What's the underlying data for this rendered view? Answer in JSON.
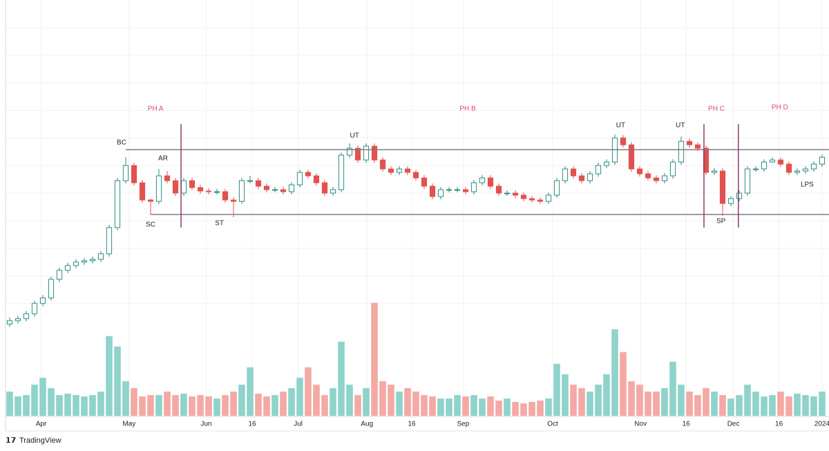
{
  "chart_data": {
    "type": "candlestick",
    "xlim": [
      -0.5,
      98.5
    ],
    "xticks": [
      {
        "value": 3.8,
        "label": "Apr"
      },
      {
        "value": 14.4,
        "label": "May"
      },
      {
        "value": 23.7,
        "label": "Jun"
      },
      {
        "value": 29.25,
        "label": "16"
      },
      {
        "value": 34.8,
        "label": "Jul"
      },
      {
        "value": 43.1,
        "label": "Aug"
      },
      {
        "value": 48.5,
        "label": "16"
      },
      {
        "value": 54.7,
        "label": "Sep"
      },
      {
        "value": 65.5,
        "label": "Oct"
      },
      {
        "value": 76.1,
        "label": "Nov"
      },
      {
        "value": 81.6,
        "label": "16"
      },
      {
        "value": 87.3,
        "label": "Dec"
      },
      {
        "value": 92.8,
        "label": "16"
      },
      {
        "value": 98,
        "label": "2024"
      }
    ],
    "ylim": [
      0,
      600
    ],
    "yticks": [
      160,
      200,
      240,
      280,
      320,
      360,
      400,
      440,
      480,
      520,
      560
    ],
    "grid": true,
    "vlim": [
      0,
      600
    ],
    "up_color": "#2b8a80",
    "down_color": "#e0524f",
    "up_volume_color": "#8fd3cb",
    "down_volume_color": "#f4a9a4",
    "candles": [
      [
        130,
        140,
        126,
        135
      ],
      [
        135,
        142,
        131,
        138
      ],
      [
        138,
        149,
        134,
        145
      ],
      [
        145,
        164,
        141,
        160
      ],
      [
        160,
        172,
        156,
        168
      ],
      [
        168,
        199,
        164,
        195
      ],
      [
        195,
        212,
        191,
        208
      ],
      [
        208,
        219,
        204,
        215
      ],
      [
        215,
        224,
        211,
        220
      ],
      [
        220,
        226,
        216,
        222
      ],
      [
        222,
        228,
        218,
        224
      ],
      [
        224,
        236,
        220,
        232
      ],
      [
        232,
        274,
        228,
        270
      ],
      [
        270,
        342,
        266,
        338
      ],
      [
        338,
        372,
        334,
        360
      ],
      [
        360,
        364,
        331,
        335
      ],
      [
        335,
        339,
        306,
        310
      ],
      [
        310,
        312,
        289,
        308
      ],
      [
        308,
        355,
        304,
        345
      ],
      [
        345,
        352,
        334,
        338
      ],
      [
        338,
        342,
        316,
        320
      ],
      [
        320,
        342,
        316,
        338
      ],
      [
        338,
        342,
        324,
        328
      ],
      [
        328,
        332,
        319,
        323
      ],
      [
        323,
        327,
        318,
        322
      ],
      [
        322,
        326,
        318,
        322
      ],
      [
        322,
        326,
        306,
        310
      ],
      [
        310,
        314,
        285,
        308
      ],
      [
        308,
        342,
        304,
        338
      ],
      [
        338,
        345,
        334,
        338
      ],
      [
        338,
        342,
        326,
        330
      ],
      [
        330,
        334,
        321,
        325
      ],
      [
        325,
        329,
        321,
        325
      ],
      [
        325,
        329,
        318,
        322
      ],
      [
        322,
        336,
        318,
        332
      ],
      [
        332,
        354,
        328,
        350
      ],
      [
        350,
        354,
        341,
        345
      ],
      [
        345,
        349,
        331,
        335
      ],
      [
        335,
        339,
        316,
        320
      ],
      [
        320,
        329,
        316,
        325
      ],
      [
        325,
        379,
        321,
        375
      ],
      [
        375,
        392,
        371,
        385
      ],
      [
        385,
        389,
        364,
        368
      ],
      [
        368,
        392,
        364,
        388
      ],
      [
        388,
        392,
        364,
        368
      ],
      [
        368,
        372,
        351,
        355
      ],
      [
        355,
        359,
        346,
        350
      ],
      [
        350,
        359,
        346,
        355
      ],
      [
        355,
        359,
        346,
        350
      ],
      [
        350,
        354,
        338,
        342
      ],
      [
        342,
        346,
        326,
        330
      ],
      [
        330,
        334,
        311,
        315
      ],
      [
        315,
        329,
        311,
        325
      ],
      [
        325,
        329,
        321,
        325
      ],
      [
        325,
        329,
        321,
        325
      ],
      [
        325,
        329,
        318,
        322
      ],
      [
        322,
        339,
        318,
        335
      ],
      [
        335,
        346,
        331,
        342
      ],
      [
        342,
        346,
        326,
        330
      ],
      [
        330,
        334,
        316,
        320
      ],
      [
        320,
        324,
        316,
        320
      ],
      [
        320,
        324,
        313,
        317
      ],
      [
        317,
        321,
        308,
        312
      ],
      [
        312,
        316,
        306,
        310
      ],
      [
        310,
        314,
        304,
        308
      ],
      [
        308,
        321,
        304,
        317
      ],
      [
        317,
        342,
        313,
        338
      ],
      [
        338,
        359,
        334,
        355
      ],
      [
        355,
        359,
        341,
        345
      ],
      [
        345,
        349,
        334,
        338
      ],
      [
        338,
        352,
        334,
        348
      ],
      [
        348,
        364,
        344,
        360
      ],
      [
        360,
        369,
        356,
        365
      ],
      [
        365,
        405,
        361,
        400
      ],
      [
        400,
        404,
        386,
        390
      ],
      [
        390,
        394,
        351,
        355
      ],
      [
        355,
        359,
        344,
        348
      ],
      [
        348,
        352,
        338,
        342
      ],
      [
        342,
        346,
        334,
        338
      ],
      [
        338,
        349,
        334,
        345
      ],
      [
        345,
        369,
        341,
        365
      ],
      [
        365,
        402,
        361,
        395
      ],
      [
        395,
        399,
        386,
        390
      ],
      [
        390,
        394,
        381,
        385
      ],
      [
        385,
        389,
        346,
        350
      ],
      [
        350,
        356,
        346,
        352
      ],
      [
        352,
        356,
        287,
        305
      ],
      [
        305,
        316,
        301,
        312
      ],
      [
        312,
        324,
        308,
        320
      ],
      [
        320,
        359,
        316,
        355
      ],
      [
        355,
        359,
        351,
        355
      ],
      [
        355,
        369,
        351,
        365
      ],
      [
        365,
        372,
        364,
        368
      ],
      [
        368,
        372,
        358,
        362
      ],
      [
        362,
        366,
        346,
        350
      ],
      [
        350,
        356,
        346,
        352
      ],
      [
        352,
        359,
        348,
        355
      ],
      [
        355,
        366,
        351,
        362
      ],
      [
        362,
        376,
        358,
        372
      ]
    ],
    "volume": [
      35,
      28,
      30,
      45,
      55,
      40,
      30,
      32,
      30,
      28,
      30,
      35,
      115,
      100,
      50,
      40,
      28,
      30,
      30,
      35,
      30,
      32,
      28,
      30,
      28,
      25,
      30,
      35,
      45,
      70,
      32,
      28,
      30,
      35,
      40,
      55,
      70,
      45,
      30,
      40,
      107,
      45,
      30,
      40,
      163,
      50,
      45,
      35,
      40,
      35,
      30,
      28,
      25,
      25,
      30,
      28,
      30,
      25,
      28,
      22,
      25,
      20,
      18,
      20,
      22,
      25,
      75,
      60,
      45,
      40,
      35,
      45,
      60,
      125,
      92,
      50,
      45,
      35,
      35,
      40,
      78,
      45,
      35,
      30,
      40,
      35,
      30,
      25,
      30,
      45,
      35,
      28,
      30,
      35,
      28,
      32,
      30,
      28,
      35
    ],
    "annotations": [
      {
        "text": "BC",
        "x": 13.5,
        "y": 393
      },
      {
        "text": "AR",
        "x": 18.5,
        "y": 370
      },
      {
        "text": "SC",
        "x": 17,
        "y": 274
      },
      {
        "text": "ST",
        "x": 25.3,
        "y": 276
      },
      {
        "text": "UT",
        "x": 41.6,
        "y": 403
      },
      {
        "text": "UT",
        "x": 73.7,
        "y": 418
      },
      {
        "text": "UT",
        "x": 80.9,
        "y": 418
      },
      {
        "text": "SP",
        "x": 85.8,
        "y": 279
      },
      {
        "text": "LPS",
        "x": 96.2,
        "y": 332
      }
    ],
    "phases": [
      {
        "text": "PH A",
        "x": 17.6,
        "y": 442
      },
      {
        "text": "PH B",
        "x": 55.25,
        "y": 442
      },
      {
        "text": "PH C",
        "x": 85.25,
        "y": 442
      },
      {
        "text": "PH D",
        "x": 92.9,
        "y": 444
      }
    ],
    "phase_color": "#e0408a",
    "range_lines": [
      {
        "price": 383,
        "from": 14
      },
      {
        "price": 289,
        "from": 17
      }
    ],
    "phase_lines": [
      20.67,
      83.75,
      87.9
    ],
    "phase_line_range": [
      270,
      420
    ],
    "phase_line_color": "#8e3a6b",
    "brand": "TradingView"
  }
}
